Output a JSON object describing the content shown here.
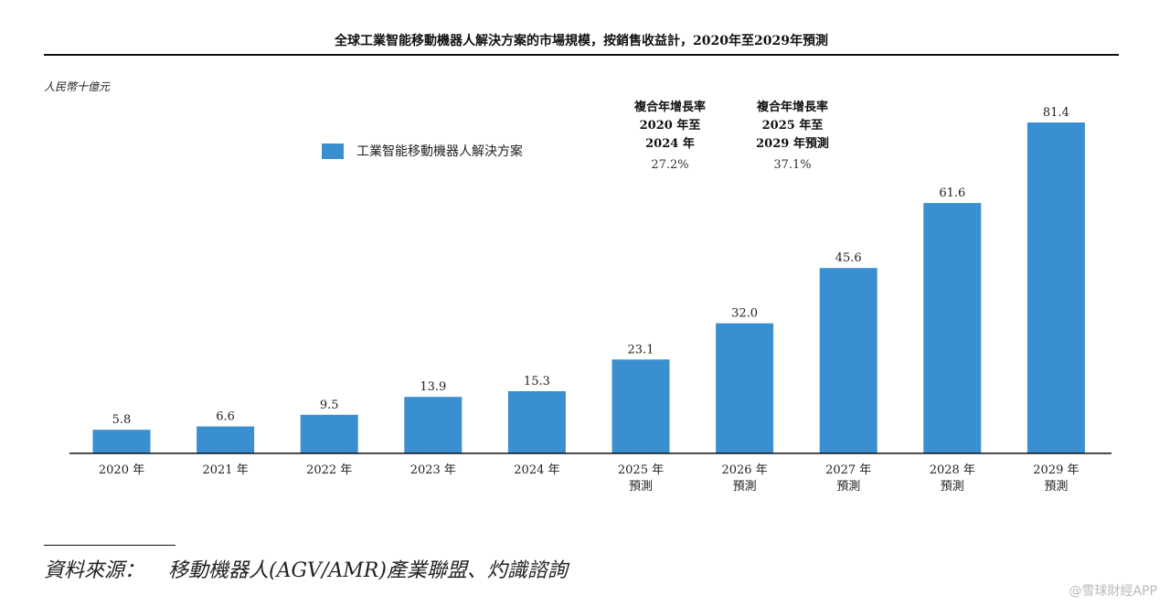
{
  "title": "全球工業智能移動機器人解決方案的市場規模，按銷售收益計，2020年至2029年預測",
  "unit_label": "人民幣十億元",
  "legend": {
    "label": "工業智能移動機器人解決方案",
    "color": "#3a8fd0"
  },
  "cagr": [
    {
      "line1": "複合年增長率",
      "line2": "2020 年至",
      "line3": "2024 年",
      "value": "27.2%"
    },
    {
      "line1": "複合年增長率",
      "line2": "2025 年至",
      "line3": "2029 年預測",
      "value": "37.1%"
    }
  ],
  "chart_data": {
    "type": "bar",
    "title": "全球工業智能移動機器人解決方案的市場規模，按銷售收益計，2020年至2029年預測",
    "ylabel": "人民幣十億元",
    "xlabel": "",
    "grid": false,
    "legend_position": "top-left",
    "categories": [
      [
        "2020 年"
      ],
      [
        "2021 年"
      ],
      [
        "2022 年"
      ],
      [
        "2023 年"
      ],
      [
        "2024 年"
      ],
      [
        "2025 年",
        "預測"
      ],
      [
        "2026 年",
        "預測"
      ],
      [
        "2027 年",
        "預測"
      ],
      [
        "2028 年",
        "預測"
      ],
      [
        "2029 年",
        "預測"
      ]
    ],
    "series": [
      {
        "name": "工業智能移動機器人解決方案",
        "color": "#3a8fd0",
        "values": [
          5.8,
          6.6,
          9.5,
          13.9,
          15.3,
          23.1,
          32.0,
          45.6,
          61.6,
          81.4
        ],
        "labels": [
          "5.8",
          "6.6",
          "9.5",
          "13.9",
          "15.3",
          "23.1",
          "32.0",
          "45.6",
          "61.6",
          "81.4"
        ]
      }
    ],
    "ylim": [
      0,
      81.4
    ]
  },
  "source": {
    "prefix": "資料來源：",
    "text": "移動機器人(AGV/AMR)產業聯盟、灼識諮詢"
  },
  "watermark": "@雪球財經APP"
}
